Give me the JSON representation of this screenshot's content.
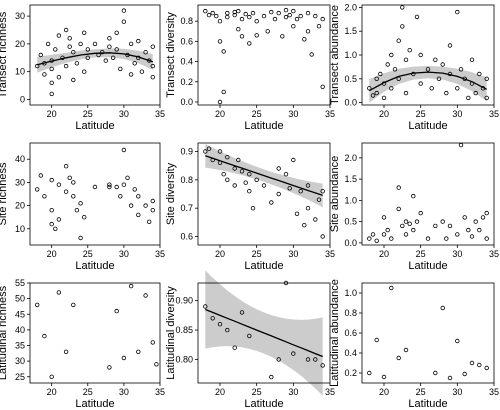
{
  "chart_data": [
    {
      "type": "scatter",
      "id": "p11",
      "xlabel": "Latitude",
      "ylabel": "Transect richness",
      "xlim": [
        17,
        35
      ],
      "ylim": [
        -2,
        34
      ],
      "xticks": [
        20,
        25,
        30,
        35
      ],
      "yticks": [
        0,
        10,
        20,
        30
      ],
      "points": [
        [
          18,
          12
        ],
        [
          18.5,
          16
        ],
        [
          19,
          9
        ],
        [
          19,
          13
        ],
        [
          19.5,
          20
        ],
        [
          20,
          2
        ],
        [
          20,
          6
        ],
        [
          20,
          11
        ],
        [
          20,
          14
        ],
        [
          20.5,
          18
        ],
        [
          21,
          23
        ],
        [
          21,
          8
        ],
        [
          21.5,
          15
        ],
        [
          22,
          25
        ],
        [
          22,
          12
        ],
        [
          22.5,
          19
        ],
        [
          22.5,
          22
        ],
        [
          23,
          7
        ],
        [
          23,
          17
        ],
        [
          23.5,
          13
        ],
        [
          24,
          20
        ],
        [
          24.5,
          10
        ],
        [
          24.5,
          24
        ],
        [
          25,
          15
        ],
        [
          25,
          18
        ],
        [
          26,
          20
        ],
        [
          26.5,
          16
        ],
        [
          27,
          17
        ],
        [
          27.5,
          14
        ],
        [
          28,
          19
        ],
        [
          28,
          22
        ],
        [
          28.5,
          15
        ],
        [
          29,
          24
        ],
        [
          29,
          18
        ],
        [
          29.5,
          11
        ],
        [
          30,
          28
        ],
        [
          30,
          32
        ],
        [
          30.5,
          16
        ],
        [
          31,
          20
        ],
        [
          31,
          9
        ],
        [
          31.5,
          13
        ],
        [
          32,
          21
        ],
        [
          32,
          15
        ],
        [
          32.5,
          10
        ],
        [
          33,
          17
        ],
        [
          33.5,
          14
        ],
        [
          34,
          8
        ],
        [
          34,
          12
        ],
        [
          34,
          19
        ]
      ],
      "trend": {
        "kind": "quadratic",
        "x": [
          18,
          20,
          22,
          24,
          26,
          28,
          30,
          32,
          34
        ],
        "y": [
          12.5,
          13.8,
          15.0,
          16.0,
          16.6,
          16.8,
          16.4,
          15.3,
          13.5
        ],
        "band": 1.5
      }
    },
    {
      "type": "scatter",
      "id": "p12",
      "xlabel": "Latitude",
      "ylabel": "Transect diversity",
      "xlim": [
        17,
        35
      ],
      "ylim": [
        -0.03,
        0.96
      ],
      "xticks": [
        20,
        25,
        30,
        35
      ],
      "yticks": [
        0.0,
        0.2,
        0.4,
        0.6,
        0.8
      ],
      "points": [
        [
          18,
          0.9
        ],
        [
          18.5,
          0.86
        ],
        [
          19,
          0.88
        ],
        [
          19.5,
          0.85
        ],
        [
          20,
          0.6
        ],
        [
          20,
          0.8
        ],
        [
          20,
          0.0
        ],
        [
          20.5,
          0.1
        ],
        [
          20.5,
          0.5
        ],
        [
          21,
          0.88
        ],
        [
          21,
          0.84
        ],
        [
          22,
          0.86
        ],
        [
          22,
          0.89
        ],
        [
          22.5,
          0.9
        ],
        [
          22.5,
          0.72
        ],
        [
          23,
          0.82
        ],
        [
          23,
          0.65
        ],
        [
          23.5,
          0.87
        ],
        [
          24,
          0.84
        ],
        [
          24,
          0.58
        ],
        [
          24.5,
          0.88
        ],
        [
          25,
          0.8
        ],
        [
          25,
          0.66
        ],
        [
          26,
          0.85
        ],
        [
          26.5,
          0.7
        ],
        [
          27,
          0.89
        ],
        [
          27.5,
          0.82
        ],
        [
          28,
          0.88
        ],
        [
          28.5,
          0.65
        ],
        [
          29,
          0.91
        ],
        [
          29,
          0.84
        ],
        [
          29.5,
          0.86
        ],
        [
          30,
          0.9
        ],
        [
          30,
          0.75
        ],
        [
          30.5,
          0.82
        ],
        [
          31,
          0.85
        ],
        [
          31.5,
          0.62
        ],
        [
          32,
          0.88
        ],
        [
          32,
          0.7
        ],
        [
          32.5,
          0.47
        ],
        [
          33,
          0.85
        ],
        [
          33.5,
          0.75
        ],
        [
          34,
          0.82
        ],
        [
          34,
          0.15
        ]
      ]
    },
    {
      "type": "scatter",
      "id": "p13",
      "xlabel": "Latitude",
      "ylabel": "Transect abundance",
      "xlim": [
        17,
        35
      ],
      "ylim": [
        -0.05,
        2.05
      ],
      "xticks": [
        20,
        25,
        30,
        35
      ],
      "yticks": [
        0.0,
        0.5,
        1.0,
        1.5,
        2.0
      ],
      "points": [
        [
          18,
          0.3
        ],
        [
          18.5,
          0.15
        ],
        [
          19,
          0.5
        ],
        [
          19,
          0.2
        ],
        [
          19.5,
          0.6
        ],
        [
          20,
          0.1
        ],
        [
          20,
          0.4
        ],
        [
          20.5,
          0.8
        ],
        [
          21,
          1.0
        ],
        [
          21,
          0.3
        ],
        [
          21.5,
          0.7
        ],
        [
          22,
          1.3
        ],
        [
          22,
          0.5
        ],
        [
          22.5,
          2.0
        ],
        [
          22.5,
          1.6
        ],
        [
          23,
          0.9
        ],
        [
          23,
          0.2
        ],
        [
          23.5,
          1.1
        ],
        [
          24,
          0.6
        ],
        [
          24.5,
          1.8
        ],
        [
          25,
          0.4
        ],
        [
          25,
          1.0
        ],
        [
          26,
          0.7
        ],
        [
          26.5,
          0.3
        ],
        [
          27,
          0.9
        ],
        [
          27.5,
          0.5
        ],
        [
          28,
          0.8
        ],
        [
          28.5,
          0.2
        ],
        [
          29,
          0.6
        ],
        [
          29,
          1.2
        ],
        [
          30,
          1.9
        ],
        [
          30,
          0.3
        ],
        [
          30.5,
          0.7
        ],
        [
          31,
          0.5
        ],
        [
          31.5,
          0.1
        ],
        [
          32,
          0.9
        ],
        [
          32,
          0.4
        ],
        [
          32.5,
          0.2
        ],
        [
          33,
          0.6
        ],
        [
          33.5,
          0.3
        ],
        [
          34,
          0.5
        ],
        [
          34,
          0.1
        ]
      ],
      "trend": {
        "kind": "quadratic",
        "x": [
          18,
          20,
          22,
          24,
          26,
          28,
          30,
          32,
          34
        ],
        "y": [
          0.25,
          0.42,
          0.55,
          0.62,
          0.64,
          0.62,
          0.55,
          0.44,
          0.28
        ],
        "band": 0.13
      }
    },
    {
      "type": "scatter",
      "id": "p21",
      "xlabel": "Latitude",
      "ylabel": "Site richness",
      "xlim": [
        17,
        35
      ],
      "ylim": [
        3,
        47
      ],
      "xticks": [
        20,
        25,
        30,
        35
      ],
      "yticks": [
        10,
        20,
        30,
        40
      ],
      "points": [
        [
          18,
          27
        ],
        [
          18.5,
          33
        ],
        [
          19,
          24
        ],
        [
          20,
          31
        ],
        [
          20,
          18
        ],
        [
          20,
          12
        ],
        [
          20.5,
          10
        ],
        [
          21,
          29
        ],
        [
          21,
          14
        ],
        [
          22,
          37
        ],
        [
          22,
          26
        ],
        [
          22.5,
          32
        ],
        [
          23,
          30
        ],
        [
          23,
          24
        ],
        [
          23.5,
          18
        ],
        [
          24,
          6
        ],
        [
          24,
          21
        ],
        [
          24.5,
          15
        ],
        [
          26,
          28
        ],
        [
          28,
          28
        ],
        [
          28,
          29
        ],
        [
          29,
          28
        ],
        [
          29.5,
          24
        ],
        [
          30,
          44
        ],
        [
          30,
          29
        ],
        [
          30.5,
          32
        ],
        [
          31,
          20
        ],
        [
          31.5,
          27
        ],
        [
          32,
          16
        ],
        [
          32,
          24
        ],
        [
          33,
          20
        ],
        [
          33.5,
          13
        ],
        [
          34,
          18
        ],
        [
          34,
          22
        ]
      ]
    },
    {
      "type": "scatter",
      "id": "p22",
      "xlabel": "Latitude",
      "ylabel": "Site diversity",
      "xlim": [
        17,
        35
      ],
      "ylim": [
        0.57,
        0.93
      ],
      "xticks": [
        20,
        25,
        30,
        35
      ],
      "yticks": [
        0.6,
        0.7,
        0.8,
        0.9
      ],
      "points": [
        [
          18,
          0.9
        ],
        [
          18.5,
          0.91
        ],
        [
          19,
          0.87
        ],
        [
          20,
          0.9
        ],
        [
          20,
          0.86
        ],
        [
          20.5,
          0.82
        ],
        [
          21,
          0.88
        ],
        [
          21,
          0.8
        ],
        [
          22,
          0.84
        ],
        [
          22,
          0.78
        ],
        [
          22.5,
          0.87
        ],
        [
          23,
          0.83
        ],
        [
          23.5,
          0.79
        ],
        [
          24,
          0.82
        ],
        [
          24,
          0.76
        ],
        [
          24.5,
          0.7
        ],
        [
          25,
          0.8
        ],
        [
          26,
          0.78
        ],
        [
          27,
          0.72
        ],
        [
          28,
          0.84
        ],
        [
          28,
          0.75
        ],
        [
          29,
          0.82
        ],
        [
          29.5,
          0.77
        ],
        [
          30,
          0.87
        ],
        [
          30.5,
          0.68
        ],
        [
          31,
          0.76
        ],
        [
          31.5,
          0.64
        ],
        [
          32,
          0.7
        ],
        [
          32,
          0.78
        ],
        [
          33,
          0.66
        ],
        [
          33.5,
          0.73
        ],
        [
          34,
          0.6
        ],
        [
          34,
          0.76
        ]
      ],
      "trend": {
        "kind": "linear",
        "x": [
          18,
          34
        ],
        "y": [
          0.885,
          0.745
        ],
        "band": 0.022
      }
    },
    {
      "type": "scatter",
      "id": "p23",
      "xlabel": "Latitude",
      "ylabel": "Site abundance",
      "xlim": [
        17,
        35
      ],
      "ylim": [
        -0.05,
        2.35
      ],
      "xticks": [
        20,
        25,
        30,
        35
      ],
      "yticks": [
        0.0,
        0.5,
        1.0,
        1.5,
        2.0
      ],
      "points": [
        [
          18,
          0.1
        ],
        [
          18.5,
          0.2
        ],
        [
          19,
          0.05
        ],
        [
          20,
          0.6
        ],
        [
          20,
          0.2
        ],
        [
          20.5,
          0.3
        ],
        [
          21,
          0.1
        ],
        [
          22,
          1.3
        ],
        [
          22,
          0.8
        ],
        [
          22.5,
          0.4
        ],
        [
          23,
          0.5
        ],
        [
          23,
          0.2
        ],
        [
          23.5,
          0.45
        ],
        [
          24,
          1.1
        ],
        [
          24,
          0.3
        ],
        [
          24.5,
          0.5
        ],
        [
          25,
          0.7
        ],
        [
          26,
          0.1
        ],
        [
          27,
          0.4
        ],
        [
          28,
          0.5
        ],
        [
          28.5,
          0.1
        ],
        [
          29,
          0.4
        ],
        [
          30,
          0.2
        ],
        [
          30.5,
          2.3
        ],
        [
          31,
          0.6
        ],
        [
          31.5,
          0.3
        ],
        [
          32,
          0.15
        ],
        [
          32.5,
          0.5
        ],
        [
          33,
          0.3
        ],
        [
          33.5,
          0.6
        ],
        [
          34,
          0.1
        ],
        [
          34,
          0.7
        ]
      ]
    },
    {
      "type": "scatter",
      "id": "p31",
      "xlabel": "Latitude",
      "ylabel": "Latitudinal richness",
      "xlim": [
        17,
        35
      ],
      "ylim": [
        23,
        55
      ],
      "xticks": [
        20,
        25,
        30,
        35
      ],
      "yticks": [
        25,
        30,
        35,
        40,
        45,
        50,
        55
      ],
      "points": [
        [
          18,
          48
        ],
        [
          19,
          38
        ],
        [
          20,
          25
        ],
        [
          21,
          52
        ],
        [
          22,
          33
        ],
        [
          23,
          48
        ],
        [
          28,
          28
        ],
        [
          29,
          46
        ],
        [
          30,
          31
        ],
        [
          31,
          54
        ],
        [
          32,
          33
        ],
        [
          33,
          51
        ],
        [
          34,
          36
        ],
        [
          34.5,
          29
        ]
      ]
    },
    {
      "type": "scatter",
      "id": "p32",
      "xlabel": "Latitude",
      "ylabel": "Latitudinal diversity",
      "xlim": [
        17,
        35
      ],
      "ylim": [
        0.76,
        0.93
      ],
      "xticks": [
        20,
        25,
        30,
        35
      ],
      "yticks": [
        0.8,
        0.85,
        0.9
      ],
      "points": [
        [
          18,
          0.89
        ],
        [
          19,
          0.87
        ],
        [
          20,
          0.86
        ],
        [
          21,
          0.85
        ],
        [
          22,
          0.82
        ],
        [
          23,
          0.88
        ],
        [
          24,
          0.84
        ],
        [
          27,
          0.77
        ],
        [
          28,
          0.8
        ],
        [
          29,
          0.93
        ],
        [
          30,
          0.81
        ],
        [
          32,
          0.8
        ],
        [
          33,
          0.8
        ],
        [
          34,
          0.79
        ]
      ],
      "trend": {
        "kind": "linear",
        "x": [
          18,
          34
        ],
        "y": [
          0.885,
          0.805
        ],
        "band": 0.035
      }
    },
    {
      "type": "scatter",
      "id": "p33",
      "xlabel": "Latitude",
      "ylabel": "Latitudinal abundance",
      "xlim": [
        17,
        35
      ],
      "ylim": [
        0.1,
        1.1
      ],
      "xticks": [
        20,
        25,
        30,
        35
      ],
      "yticks": [
        0.2,
        0.4,
        0.6,
        0.8,
        1.0
      ],
      "points": [
        [
          18,
          0.2
        ],
        [
          19,
          0.53
        ],
        [
          20,
          0.16
        ],
        [
          21,
          1.05
        ],
        [
          22,
          0.35
        ],
        [
          23,
          0.43
        ],
        [
          27,
          0.2
        ],
        [
          28,
          0.85
        ],
        [
          29,
          0.15
        ],
        [
          30,
          0.52
        ],
        [
          31,
          0.19
        ],
        [
          32,
          0.3
        ],
        [
          33,
          0.28
        ],
        [
          34,
          0.25
        ]
      ]
    }
  ]
}
